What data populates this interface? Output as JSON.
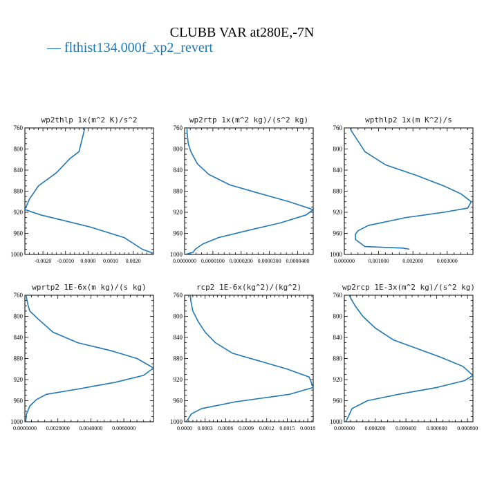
{
  "title": "CLUBB VAR at280E,-7N",
  "legend": {
    "label": "— flthist134.000f_xp2_revert",
    "color": "#1f77b4"
  },
  "chart_data": [
    {
      "type": "line",
      "title": "wp2thlp  1x(m^2 K)/s^2",
      "xlim": [
        -0.0028,
        0.0029
      ],
      "ylim": [
        760,
        1000
      ],
      "yticks": [
        760,
        800,
        840,
        880,
        920,
        960,
        1000
      ],
      "xticks": [
        -0.002,
        -0.001,
        0.0,
        0.001,
        0.002
      ],
      "xtick_labels": [
        "-0.0020",
        "-0.0010",
        "0.0000",
        "0.0010",
        "0.0020"
      ],
      "series": [
        {
          "color": "#1f77b4",
          "x": [
            -0.0001,
            -0.0002,
            -0.0004,
            -0.0008,
            -0.0014,
            -0.0022,
            -0.0026,
            -0.0028,
            -0.0021,
            0.0001,
            0.0016,
            0.0024,
            0.0029,
            0.0029
          ],
          "y": [
            752,
            770,
            805,
            818,
            845,
            870,
            895,
            915,
            925,
            948,
            968,
            990,
            998,
            1000
          ]
        }
      ]
    },
    {
      "type": "line",
      "title": "wp2rtp  1x(m^2 kg)/(s^2 kg)",
      "xlim": [
        0.0,
        4.55e-05
      ],
      "ylim": [
        760,
        1000
      ],
      "yticks": [
        760,
        800,
        840,
        880,
        920,
        960,
        1000
      ],
      "xticks": [
        0.0,
        1e-05,
        2e-05,
        3e-05,
        4e-05
      ],
      "xtick_labels": [
        "0.0000000",
        "0.0000100",
        "0.0000200",
        "0.0000300",
        "0.0000400"
      ],
      "series": [
        {
          "color": "#1f77b4",
          "x": [
            8e-07,
            9e-07,
            1.3e-06,
            2.2e-06,
            4.5e-06,
            8.5e-06,
            1.6e-05,
            2.7e-05,
            3.7e-05,
            4.55e-05,
            4.3e-05,
            3.4e-05,
            2.2e-05,
            1.2e-05,
            6.5e-06,
            3.8e-06,
            3e-06,
            2e-07
          ],
          "y": [
            752,
            770,
            790,
            805,
            828,
            848,
            868,
            885,
            900,
            915,
            925,
            940,
            955,
            968,
            980,
            990,
            996,
            1000
          ]
        }
      ]
    },
    {
      "type": "line",
      "title": "wpthlp2  1x(m K^2)/s",
      "xlim": [
        0.0,
        0.00375
      ],
      "ylim": [
        760,
        1000
      ],
      "yticks": [
        760,
        800,
        840,
        880,
        920,
        960,
        1000
      ],
      "xticks": [
        0.0,
        0.001,
        0.002,
        0.003
      ],
      "xtick_labels": [
        "0.000000",
        "0.001000",
        "0.002000",
        "0.003000"
      ],
      "series": [
        {
          "color": "#1f77b4",
          "x": [
            0.00012,
            0.0002,
            0.00035,
            0.0006,
            0.0012,
            0.0021,
            0.0029,
            0.0034,
            0.0037,
            0.0036,
            0.0029,
            0.0018,
            0.0007,
            0.0004,
            0.00032,
            0.00033,
            0.0006,
            0.0017,
            0.0019
          ],
          "y": [
            752,
            765,
            780,
            805,
            830,
            850,
            870,
            885,
            900,
            912,
            920,
            930,
            945,
            955,
            962,
            972,
            985,
            988,
            990
          ]
        }
      ]
    },
    {
      "type": "line",
      "title": "wprtp2  1E-6x(m kg)/(s kg)",
      "xlim": [
        0.0,
        0.0078
      ],
      "ylim": [
        760,
        1000
      ],
      "yticks": [
        760,
        800,
        840,
        880,
        920,
        960,
        1000
      ],
      "xticks": [
        0.0,
        0.002,
        0.004,
        0.006
      ],
      "xtick_labels": [
        "0.0000000",
        "0.0020000",
        "0.0040000",
        "0.0060000"
      ],
      "series": [
        {
          "color": "#1f77b4",
          "x": [
            5e-05,
            0.0001,
            0.0002,
            0.0003,
            0.0008,
            0.0017,
            0.0032,
            0.0052,
            0.0068,
            0.0078,
            0.0072,
            0.0055,
            0.0032,
            0.0013,
            0.0007,
            0.0003,
            0.0001,
            5e-05
          ],
          "y": [
            752,
            765,
            780,
            790,
            805,
            830,
            850,
            865,
            880,
            898,
            912,
            925,
            938,
            948,
            958,
            970,
            985,
            1000
          ]
        }
      ]
    },
    {
      "type": "line",
      "title": "rcp2  1E-6x(kg^2)/(kg^2)",
      "xlim": [
        0.0,
        0.00188
      ],
      "ylim": [
        760,
        1000
      ],
      "yticks": [
        760,
        800,
        840,
        880,
        920,
        960,
        1000
      ],
      "xticks": [
        0.0,
        0.0003,
        0.0006,
        0.0009,
        0.0012,
        0.0015,
        0.0018
      ],
      "xtick_labels": [
        "0.0000",
        "0.0003",
        "0.0006",
        "0.0009",
        "0.0012",
        "0.0015",
        "0.0018"
      ],
      "series": [
        {
          "color": "#1f77b4",
          "x": [
            8e-05,
            9e-05,
            0.00012,
            0.0002,
            0.0003,
            0.00045,
            0.0007,
            0.0011,
            0.0015,
            0.00182,
            0.00188,
            0.00153,
            0.00075,
            0.00025,
            0.0001,
            5e-05,
            2e-05
          ],
          "y": [
            752,
            770,
            790,
            810,
            830,
            850,
            870,
            885,
            900,
            915,
            935,
            948,
            962,
            975,
            985,
            995,
            1000
          ]
        }
      ]
    },
    {
      "type": "line",
      "title": "wp2rcp  1E-3x(m^2 kg)/(s^2 kg)",
      "xlim": [
        0.0,
        0.000835
      ],
      "ylim": [
        760,
        1000
      ],
      "yticks": [
        760,
        800,
        840,
        880,
        920,
        960,
        1000
      ],
      "xticks": [
        0.0,
        0.0002,
        0.0004,
        0.0006,
        0.0008
      ],
      "xtick_labels": [
        "0.000000",
        "0.000200",
        "0.000400",
        "0.000600",
        "0.000800"
      ],
      "series": [
        {
          "color": "#1f77b4",
          "x": [
            2e-05,
            4e-05,
            7e-05,
            0.00012,
            0.0002,
            0.00032,
            0.00048,
            0.00063,
            0.00077,
            0.000835,
            0.00078,
            0.0006,
            0.00035,
            0.00015,
            5e-05,
            1e-05
          ],
          "y": [
            752,
            765,
            780,
            800,
            822,
            845,
            862,
            878,
            895,
            912,
            922,
            935,
            948,
            960,
            975,
            1000
          ]
        }
      ]
    }
  ]
}
